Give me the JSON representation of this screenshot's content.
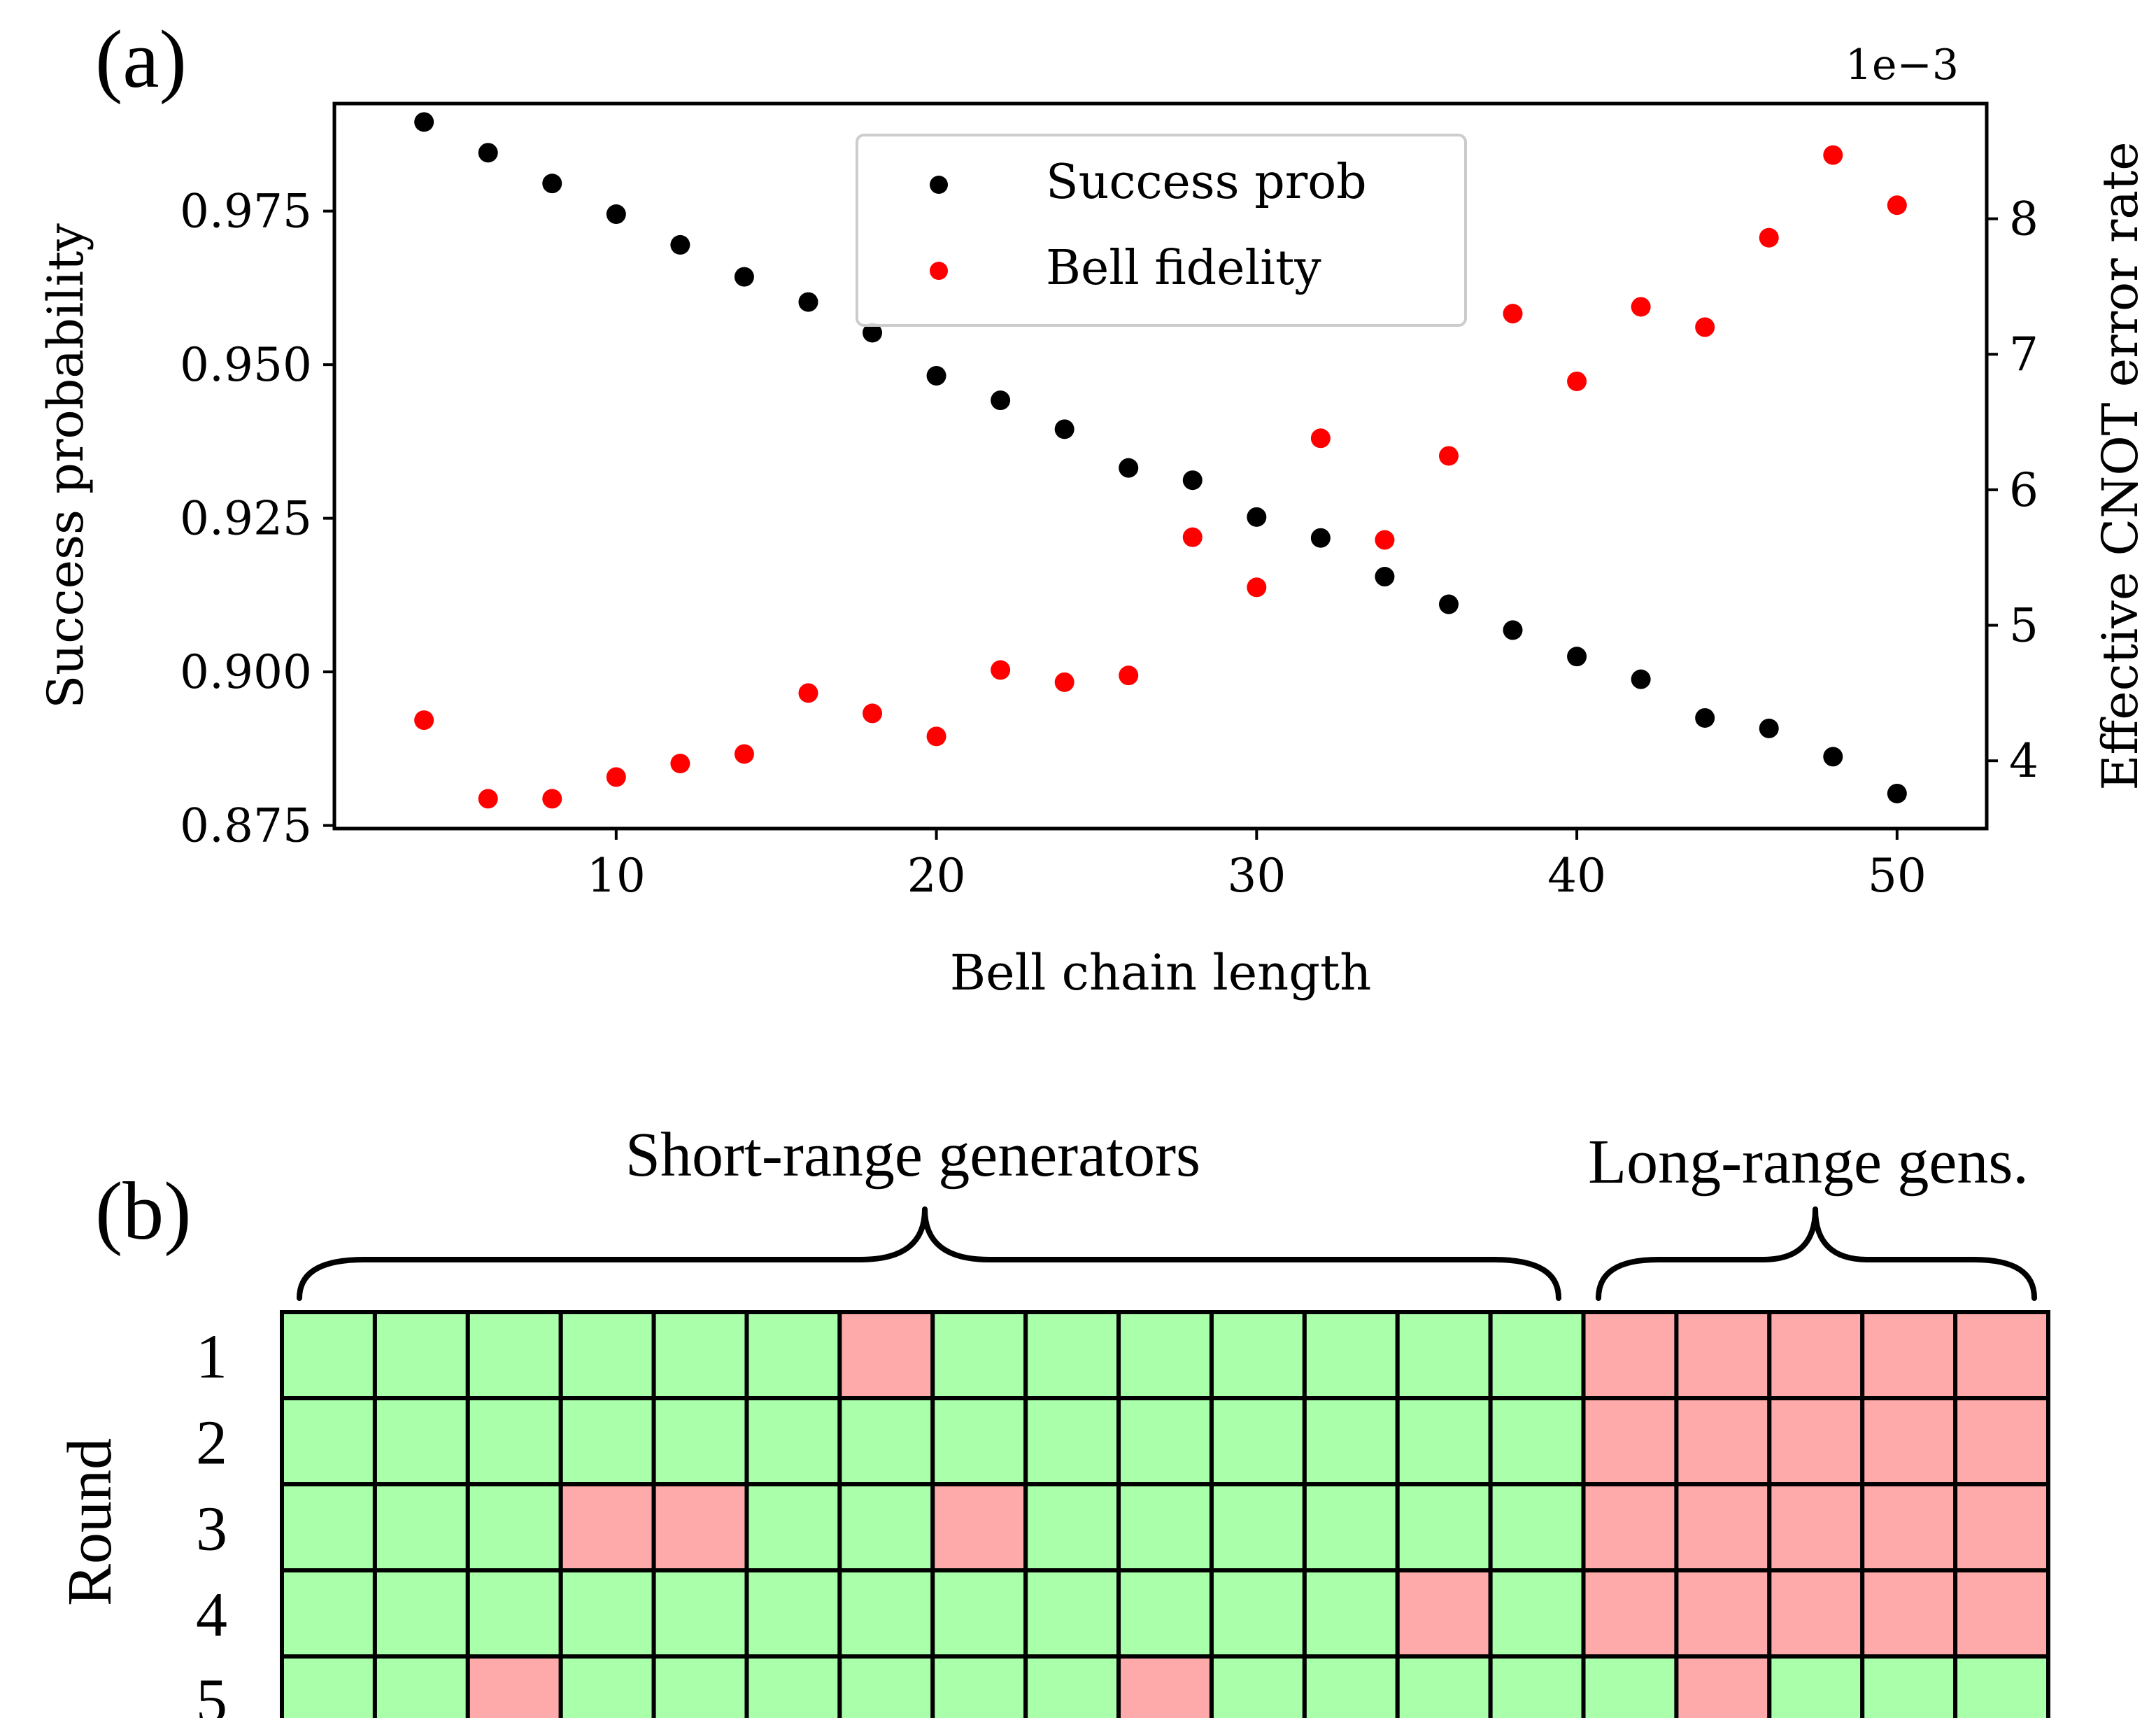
{
  "chart_data": [
    {
      "type": "scatter",
      "panel_label": "(a)",
      "xlabel": "Bell chain length",
      "ylabel": "Success probability",
      "y2label": "Effective CNOT error rate",
      "y2_offset_text": "1e−3",
      "xlim": [
        1.2,
        52.8
      ],
      "ylim": [
        0.8745,
        0.9925
      ],
      "y2lim": [
        3.5,
        8.85
      ],
      "xticks": [
        10,
        20,
        30,
        40,
        50
      ],
      "yticks": [
        0.875,
        0.9,
        0.925,
        0.95,
        0.975
      ],
      "ytick_labels": [
        "0.875",
        "0.900",
        "0.925",
        "0.950",
        "0.975"
      ],
      "y2ticks": [
        4,
        5,
        6,
        7,
        8
      ],
      "legend_position": "top-center",
      "series": [
        {
          "name": "Success prob",
          "color": "#000000",
          "axis": "left",
          "x": [
            4,
            6,
            8,
            10,
            12,
            14,
            16,
            18,
            20,
            22,
            24,
            26,
            28,
            30,
            32,
            34,
            36,
            38,
            40,
            42,
            44,
            46,
            48,
            50
          ],
          "y": [
            0.9895,
            0.9845,
            0.9795,
            0.9745,
            0.9695,
            0.9643,
            0.9602,
            0.9552,
            0.9482,
            0.9442,
            0.9395,
            0.9332,
            0.9312,
            0.9252,
            0.9218,
            0.9155,
            0.911,
            0.9068,
            0.9025,
            0.8988,
            0.8925,
            0.8908,
            0.8862,
            0.8802
          ]
        },
        {
          "name": "Bell fidelity",
          "color": "#ff0000",
          "axis": "right",
          "x": [
            4,
            6,
            8,
            10,
            12,
            14,
            16,
            18,
            20,
            22,
            24,
            26,
            28,
            30,
            32,
            34,
            36,
            38,
            40,
            42,
            44,
            46,
            48,
            50
          ],
          "y": [
            4.3,
            3.72,
            3.72,
            3.88,
            3.98,
            4.05,
            4.5,
            4.35,
            4.18,
            4.67,
            4.58,
            4.63,
            5.65,
            5.28,
            6.38,
            5.63,
            6.25,
            7.3,
            6.8,
            7.35,
            7.2,
            7.86,
            8.47,
            8.1
          ]
        }
      ]
    },
    {
      "type": "heatmap",
      "panel_label": "(b)",
      "ylabel": "Round",
      "row_labels": [
        "1",
        "2",
        "3",
        "4",
        "5"
      ],
      "group_labels": [
        {
          "label": "Short-range generators",
          "columns": [
            1,
            14
          ]
        },
        {
          "label": "Long-range gens.",
          "columns": [
            15,
            19
          ]
        }
      ],
      "colors": {
        "pass": "#aaffaa",
        "fail": "#ffaaaa"
      },
      "cells": [
        [
          "pass",
          "pass",
          "pass",
          "pass",
          "pass",
          "pass",
          "fail",
          "pass",
          "pass",
          "pass",
          "pass",
          "pass",
          "pass",
          "pass",
          "fail",
          "fail",
          "fail",
          "fail",
          "fail"
        ],
        [
          "pass",
          "pass",
          "pass",
          "pass",
          "pass",
          "pass",
          "pass",
          "pass",
          "pass",
          "pass",
          "pass",
          "pass",
          "pass",
          "pass",
          "fail",
          "fail",
          "fail",
          "fail",
          "fail"
        ],
        [
          "pass",
          "pass",
          "pass",
          "fail",
          "fail",
          "pass",
          "pass",
          "fail",
          "pass",
          "pass",
          "pass",
          "pass",
          "pass",
          "pass",
          "fail",
          "fail",
          "fail",
          "fail",
          "fail"
        ],
        [
          "pass",
          "pass",
          "pass",
          "pass",
          "pass",
          "pass",
          "pass",
          "pass",
          "pass",
          "pass",
          "pass",
          "pass",
          "fail",
          "pass",
          "fail",
          "fail",
          "fail",
          "fail",
          "fail"
        ],
        [
          "pass",
          "pass",
          "fail",
          "pass",
          "pass",
          "pass",
          "pass",
          "pass",
          "pass",
          "fail",
          "pass",
          "pass",
          "pass",
          "pass",
          "pass",
          "fail",
          "pass",
          "pass",
          "pass"
        ]
      ]
    }
  ]
}
